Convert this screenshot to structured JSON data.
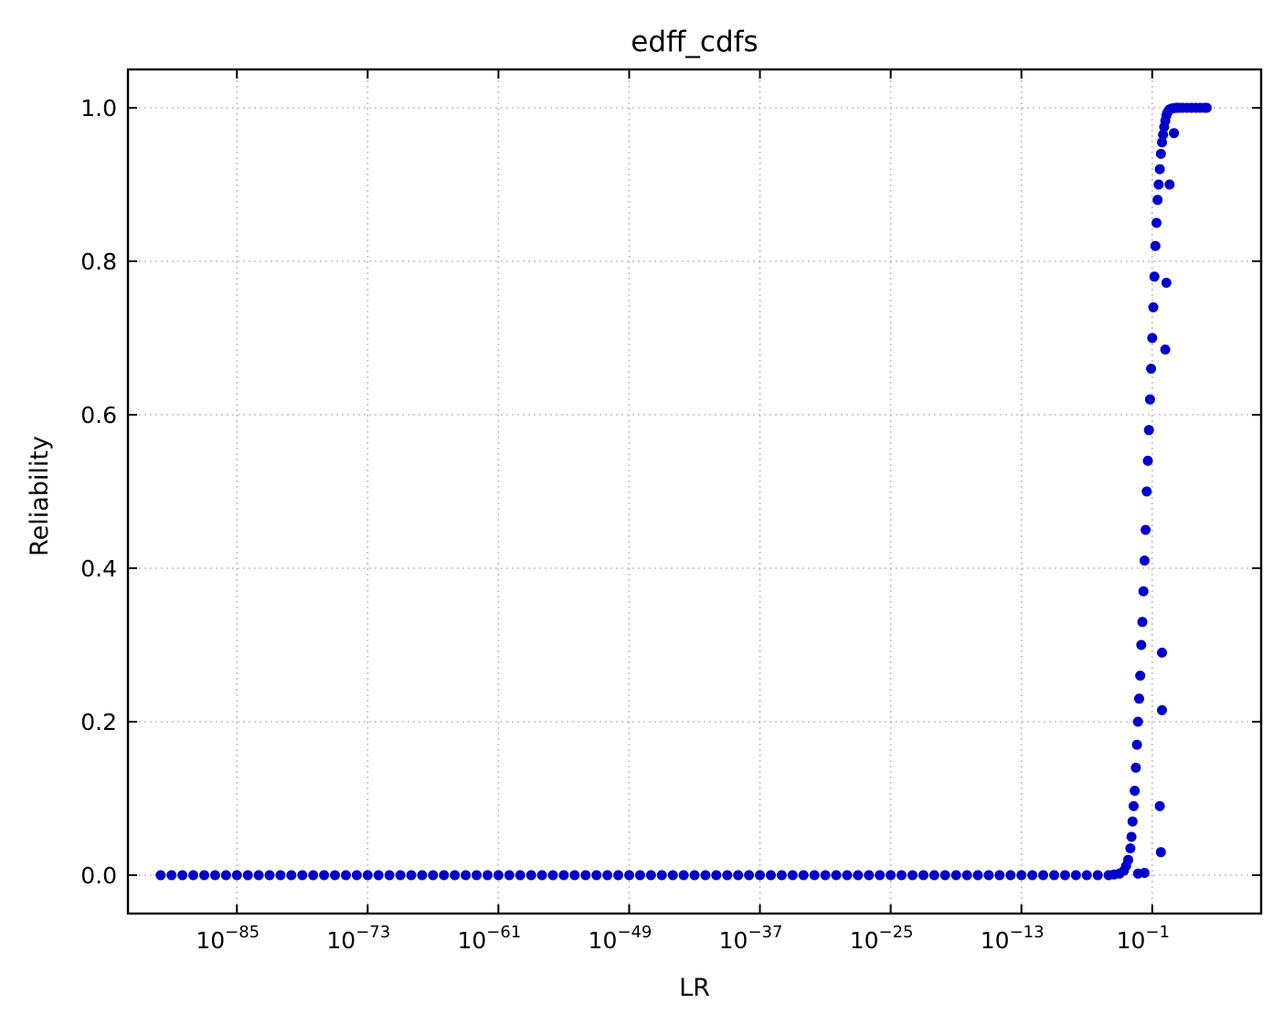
{
  "chart_data": {
    "type": "scatter",
    "title": "edff_cdfs",
    "xlabel": "LR",
    "ylabel": "Reliability",
    "xscale": "log",
    "xlim_exp": [
      -95,
      9
    ],
    "ylim": [
      -0.05,
      1.05
    ],
    "grid": true,
    "marker_color": "#0000cc",
    "x_ticks": [
      {
        "base": "10",
        "exp": "−85",
        "value_exp": -85
      },
      {
        "base": "10",
        "exp": "−73",
        "value_exp": -73
      },
      {
        "base": "10",
        "exp": "−61",
        "value_exp": -61
      },
      {
        "base": "10",
        "exp": "−49",
        "value_exp": -49
      },
      {
        "base": "10",
        "exp": "−37",
        "value_exp": -37
      },
      {
        "base": "10",
        "exp": "−25",
        "value_exp": -25
      },
      {
        "base": "10",
        "exp": "−13",
        "value_exp": -13
      },
      {
        "base": "10",
        "exp": "−1",
        "value_exp": -1
      }
    ],
    "y_ticks": [
      "0.0",
      "0.2",
      "0.4",
      "0.6",
      "0.8",
      "1.0"
    ],
    "series": [
      {
        "log10_x": [
          -92,
          -91,
          -90,
          -89,
          -88,
          -87,
          -86,
          -85,
          -84,
          -83,
          -82,
          -81,
          -80,
          -79,
          -78,
          -77,
          -76,
          -75,
          -74,
          -73,
          -72,
          -71,
          -70,
          -69,
          -68,
          -67,
          -66,
          -65,
          -64,
          -63,
          -62,
          -61,
          -60,
          -59,
          -58,
          -57,
          -56,
          -55,
          -54,
          -53,
          -52,
          -51,
          -50,
          -49,
          -48,
          -47,
          -46,
          -45,
          -44,
          -43,
          -42,
          -41,
          -40,
          -39,
          -38,
          -37,
          -36,
          -35,
          -34,
          -33,
          -32,
          -31,
          -30,
          -29,
          -28,
          -27,
          -26,
          -25,
          -24,
          -23,
          -22,
          -21,
          -20,
          -19,
          -18,
          -17,
          -16,
          -15,
          -14,
          -13,
          -12,
          -11,
          -10,
          -9,
          -8,
          -7,
          -6,
          -5,
          -4.5,
          -4,
          -3.6,
          -3.4,
          -3.2,
          -3.0,
          -2.9,
          -2.8,
          -2.7,
          -2.6,
          -2.5,
          -2.4,
          -2.3,
          -2.2,
          -2.1,
          -2.0,
          -1.9,
          -1.8,
          -1.7,
          -1.6,
          -1.5,
          -1.4,
          -1.3,
          -1.2,
          -1.1,
          -1.0,
          -0.9,
          -0.8,
          -0.7,
          -0.6,
          -0.5,
          -0.4,
          -0.3,
          -0.2,
          -0.1,
          0.0,
          0.1,
          0.2,
          0.3,
          0.4,
          0.5,
          0.6,
          0.8,
          1.0,
          1.2,
          1.5,
          1.8,
          2.2,
          2.6,
          3.0,
          3.4,
          3.8,
          4.0,
          -2.3,
          -1.7,
          -0.3,
          -0.2,
          -0.1,
          -0.1,
          0.2,
          0.3,
          0.6,
          1.0,
          1.3
        ],
        "y": [
          0,
          0,
          0,
          0,
          0,
          0,
          0,
          0,
          0,
          0,
          0,
          0,
          0,
          0,
          0,
          0,
          0,
          0,
          0,
          0,
          0,
          0,
          0,
          0,
          0,
          0,
          0,
          0,
          0,
          0,
          0,
          0,
          0,
          0,
          0,
          0,
          0,
          0,
          0,
          0,
          0,
          0,
          0,
          0,
          0,
          0,
          0,
          0,
          0,
          0,
          0,
          0,
          0,
          0,
          0,
          0,
          0,
          0,
          0,
          0,
          0,
          0,
          0,
          0,
          0,
          0,
          0,
          0,
          0,
          0,
          0,
          0,
          0,
          0,
          0,
          0,
          0,
          0,
          0,
          0,
          0,
          0,
          0,
          0,
          0,
          0,
          0,
          0,
          0.001,
          0.002,
          0.006,
          0.012,
          0.02,
          0.035,
          0.05,
          0.07,
          0.09,
          0.11,
          0.14,
          0.17,
          0.2,
          0.23,
          0.26,
          0.3,
          0.33,
          0.37,
          0.41,
          0.45,
          0.5,
          0.54,
          0.58,
          0.62,
          0.66,
          0.7,
          0.74,
          0.78,
          0.82,
          0.85,
          0.88,
          0.9,
          0.92,
          0.94,
          0.955,
          0.965,
          0.975,
          0.983,
          0.99,
          0.994,
          0.996,
          0.998,
          0.999,
          0.9995,
          1.0,
          1.0,
          1.0,
          1.0,
          1.0,
          1.0,
          1.0,
          1.0,
          1.0,
          0.002,
          0.003,
          0.09,
          0.03,
          0.29,
          0.215,
          0.685,
          0.772,
          0.9,
          0.967,
          1.0
        ]
      }
    ]
  }
}
